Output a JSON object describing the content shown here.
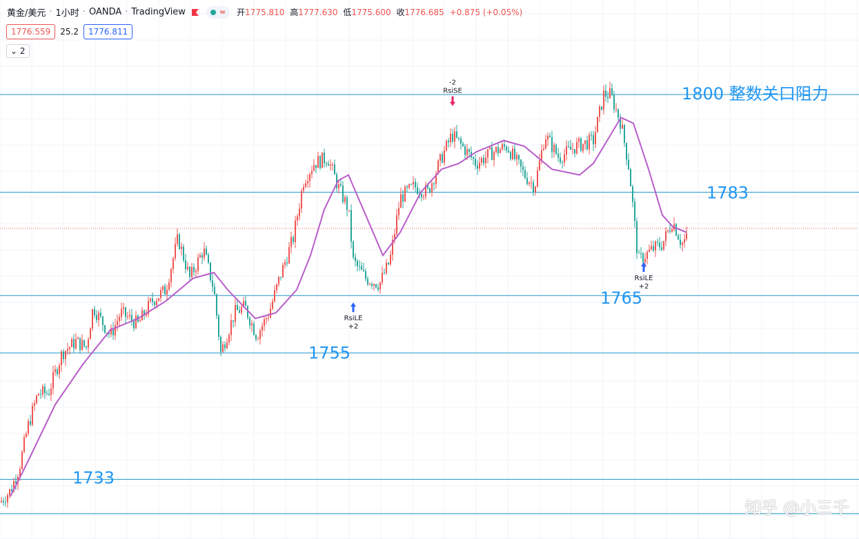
{
  "header": {
    "symbol": "黄金/美元",
    "interval": "1小时",
    "broker": "OANDA",
    "platform": "TradingView",
    "sep": "·",
    "wave_glyph": "≈",
    "ohlc": [
      {
        "key": "开",
        "value": "1775.810"
      },
      {
        "key": "高",
        "value": "1777.630"
      },
      {
        "key": "低",
        "value": "1775.600"
      },
      {
        "key": "收",
        "value": "1776.685"
      }
    ],
    "change": "+0.875 (+0.05%)"
  },
  "quote": {
    "bid": "1776.559",
    "spread": "25.2",
    "ask": "1776.811"
  },
  "indicator_toggle": {
    "icon": "chevron-down-icon",
    "glyph": "⌄",
    "count": "2"
  },
  "watermark": "知乎 @小三千",
  "colors": {
    "up": "#ef5350",
    "down": "#26a69a",
    "ma": "#b85cc9",
    "level": "#2196c9",
    "label": "#2196f3",
    "signal_long": "#2962ff",
    "signal_short": "#e91e63"
  },
  "chart_data": {
    "type": "candlestick",
    "y_range": [
      1727,
      1803
    ],
    "levels": [
      {
        "price": 1800,
        "label": "1800 整数关口阻力"
      },
      {
        "price": 1783,
        "label": "1783"
      },
      {
        "price": 1765,
        "label": "1765"
      },
      {
        "price": 1755,
        "label": "1755"
      },
      {
        "price": 1733,
        "label": "1733"
      },
      {
        "price": 1727,
        "label": ""
      }
    ],
    "current_price": 1776.685,
    "signals": [
      {
        "type": "long",
        "label": "RsiLE",
        "qty": "+2",
        "bar": 512,
        "price": 1765
      },
      {
        "type": "short",
        "label": "RsiSE",
        "qty": "-2",
        "bar": 656,
        "price": 1798
      },
      {
        "type": "long",
        "label": "RsiLE",
        "qty": "+2",
        "bar": 933,
        "price": 1772
      }
    ],
    "close_path": [
      [
        0,
        1729
      ],
      [
        15,
        1731
      ],
      [
        28,
        1735
      ],
      [
        40,
        1742
      ],
      [
        55,
        1748
      ],
      [
        70,
        1748
      ],
      [
        90,
        1755
      ],
      [
        110,
        1757
      ],
      [
        125,
        1756
      ],
      [
        135,
        1763
      ],
      [
        150,
        1760
      ],
      [
        160,
        1758
      ],
      [
        175,
        1762
      ],
      [
        200,
        1760
      ],
      [
        220,
        1764
      ],
      [
        240,
        1766
      ],
      [
        258,
        1775
      ],
      [
        275,
        1768
      ],
      [
        295,
        1773
      ],
      [
        310,
        1766
      ],
      [
        320,
        1755
      ],
      [
        340,
        1762
      ],
      [
        355,
        1763
      ],
      [
        372,
        1758
      ],
      [
        390,
        1762
      ],
      [
        405,
        1768
      ],
      [
        425,
        1775
      ],
      [
        440,
        1785
      ],
      [
        455,
        1788
      ],
      [
        475,
        1789
      ],
      [
        490,
        1784
      ],
      [
        505,
        1780
      ],
      [
        512,
        1771
      ],
      [
        530,
        1768
      ],
      [
        550,
        1767
      ],
      [
        565,
        1771
      ],
      [
        580,
        1782
      ],
      [
        600,
        1784
      ],
      [
        620,
        1783
      ],
      [
        640,
        1789
      ],
      [
        655,
        1793
      ],
      [
        670,
        1791
      ],
      [
        690,
        1788
      ],
      [
        715,
        1790
      ],
      [
        735,
        1791
      ],
      [
        760,
        1786
      ],
      [
        775,
        1784
      ],
      [
        790,
        1793
      ],
      [
        810,
        1789
      ],
      [
        835,
        1791
      ],
      [
        860,
        1792
      ],
      [
        875,
        1800
      ],
      [
        885,
        1800
      ],
      [
        900,
        1795
      ],
      [
        912,
        1787
      ],
      [
        925,
        1771
      ],
      [
        945,
        1773
      ],
      [
        960,
        1774
      ],
      [
        975,
        1778
      ],
      [
        988,
        1774
      ],
      [
        995,
        1775
      ]
    ],
    "ma_path": [
      [
        15,
        1730
      ],
      [
        40,
        1736
      ],
      [
        80,
        1746
      ],
      [
        120,
        1753
      ],
      [
        160,
        1759
      ],
      [
        200,
        1761
      ],
      [
        240,
        1764
      ],
      [
        280,
        1768
      ],
      [
        310,
        1769
      ],
      [
        330,
        1766
      ],
      [
        370,
        1761
      ],
      [
        400,
        1762
      ],
      [
        430,
        1766
      ],
      [
        450,
        1772
      ],
      [
        470,
        1780
      ],
      [
        490,
        1785
      ],
      [
        505,
        1786
      ],
      [
        530,
        1779
      ],
      [
        555,
        1772
      ],
      [
        580,
        1776
      ],
      [
        610,
        1783
      ],
      [
        640,
        1787
      ],
      [
        665,
        1788
      ],
      [
        690,
        1790
      ],
      [
        730,
        1792
      ],
      [
        760,
        1791
      ],
      [
        800,
        1787
      ],
      [
        840,
        1786
      ],
      [
        860,
        1788
      ],
      [
        880,
        1792
      ],
      [
        900,
        1796
      ],
      [
        918,
        1795
      ],
      [
        940,
        1787
      ],
      [
        960,
        1779
      ],
      [
        975,
        1777
      ],
      [
        995,
        1776
      ]
    ]
  }
}
